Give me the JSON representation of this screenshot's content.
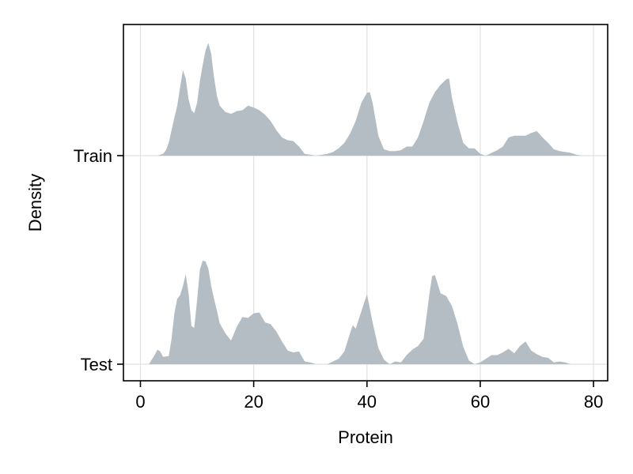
{
  "chart_data": {
    "type": "area",
    "subtype": "ridgeline-density",
    "title": "",
    "xlabel": "Protein",
    "ylabel": "Density",
    "xlim": [
      -3,
      82.5
    ],
    "xticks": [
      0,
      20,
      40,
      60,
      80
    ],
    "xtick_labels": [
      "0",
      "20",
      "40",
      "60",
      "80"
    ],
    "categories": [
      "Train",
      "Test"
    ],
    "grid": true,
    "fill_color": "#b4bdc4",
    "grid_color": "#e1e1e1",
    "series": [
      {
        "name": "Train",
        "x": [
          1.5,
          3.0,
          4.0,
          4.5,
          5.0,
          5.5,
          6.0,
          6.5,
          7.0,
          7.5,
          8.0,
          8.5,
          9.0,
          9.5,
          10.0,
          10.5,
          11.0,
          11.5,
          12.0,
          12.5,
          13.0,
          13.5,
          14.0,
          15.0,
          16.0,
          17.0,
          18.0,
          19.0,
          20.0,
          21.0,
          22.0,
          23.0,
          24.0,
          25.0,
          26.0,
          27.0,
          28.0,
          29.0,
          30.0,
          31.0,
          32.0,
          33.0,
          34.0,
          35.0,
          36.0,
          37.0,
          38.0,
          39.0,
          40.0,
          40.5,
          41.0,
          42.0,
          43.0,
          44.0,
          45.0,
          46.0,
          47.0,
          48.0,
          49.0,
          50.0,
          51.0,
          52.0,
          53.0,
          54.0,
          54.5,
          55.0,
          56.0,
          57.0,
          58.0,
          59.0,
          60.0,
          61.0,
          62.0,
          63.0,
          64.0,
          65.0,
          66.0,
          67.0,
          68.0,
          69.0,
          70.0,
          71.0,
          72.0,
          73.0,
          74.0,
          75.0,
          76.0,
          77.0,
          78.0
        ],
        "density": [
          0.0,
          0.0,
          0.02,
          0.06,
          0.14,
          0.28,
          0.42,
          0.55,
          0.75,
          0.94,
          0.85,
          0.62,
          0.5,
          0.47,
          0.58,
          0.82,
          1.0,
          1.16,
          1.24,
          1.12,
          0.86,
          0.66,
          0.55,
          0.48,
          0.46,
          0.49,
          0.5,
          0.55,
          0.53,
          0.5,
          0.45,
          0.38,
          0.28,
          0.2,
          0.17,
          0.16,
          0.1,
          0.02,
          0.01,
          0.0,
          0.01,
          0.02,
          0.04,
          0.08,
          0.14,
          0.24,
          0.38,
          0.58,
          0.69,
          0.7,
          0.58,
          0.22,
          0.07,
          0.05,
          0.05,
          0.06,
          0.1,
          0.1,
          0.2,
          0.38,
          0.58,
          0.7,
          0.78,
          0.84,
          0.85,
          0.64,
          0.36,
          0.14,
          0.08,
          0.08,
          0.02,
          0.0,
          0.03,
          0.06,
          0.1,
          0.2,
          0.22,
          0.22,
          0.22,
          0.25,
          0.27,
          0.2,
          0.14,
          0.07,
          0.05,
          0.04,
          0.03,
          0.01,
          0.0
        ]
      },
      {
        "name": "Test",
        "x": [
          1.5,
          2.5,
          3.0,
          3.5,
          4.0,
          5.0,
          5.5,
          6.0,
          6.5,
          7.0,
          7.5,
          8.0,
          8.5,
          9.0,
          9.5,
          10.0,
          10.5,
          11.0,
          11.5,
          12.0,
          12.5,
          13.0,
          13.5,
          14.0,
          15.0,
          16.0,
          17.0,
          18.0,
          19.0,
          20.0,
          21.0,
          22.0,
          23.0,
          24.0,
          25.0,
          26.0,
          27.0,
          28.0,
          29.0,
          30.0,
          31.0,
          32.0,
          33.0,
          34.0,
          35.0,
          36.0,
          37.0,
          37.5,
          38.0,
          39.0,
          40.0,
          41.0,
          42.0,
          43.0,
          44.0,
          45.0,
          46.0,
          47.0,
          48.0,
          49.0,
          50.0,
          51.0,
          51.5,
          52.0,
          53.0,
          54.0,
          55.0,
          56.0,
          57.0,
          58.0,
          59.0,
          60.0,
          61.0,
          62.0,
          63.0,
          64.0,
          65.0,
          66.0,
          67.0,
          68.0,
          69.0,
          70.0,
          71.0,
          72.0,
          73.0,
          74.0,
          75.0,
          76.0,
          77.0
        ],
        "density": [
          0.0,
          0.1,
          0.16,
          0.14,
          0.08,
          0.09,
          0.28,
          0.56,
          0.72,
          0.76,
          0.86,
          0.99,
          0.78,
          0.42,
          0.4,
          0.7,
          1.04,
          1.14,
          1.13,
          1.05,
          0.86,
          0.72,
          0.59,
          0.45,
          0.34,
          0.26,
          0.41,
          0.52,
          0.51,
          0.56,
          0.57,
          0.46,
          0.44,
          0.36,
          0.25,
          0.15,
          0.13,
          0.14,
          0.03,
          0.02,
          0.0,
          0.0,
          0.0,
          0.03,
          0.06,
          0.14,
          0.34,
          0.43,
          0.39,
          0.58,
          0.77,
          0.46,
          0.18,
          0.05,
          0.0,
          0.03,
          0.02,
          0.1,
          0.16,
          0.2,
          0.28,
          0.76,
          0.97,
          0.98,
          0.78,
          0.75,
          0.64,
          0.44,
          0.19,
          0.04,
          0.0,
          0.02,
          0.06,
          0.1,
          0.1,
          0.13,
          0.17,
          0.12,
          0.2,
          0.25,
          0.15,
          0.11,
          0.08,
          0.07,
          0.02,
          0.03,
          0.02,
          0.0,
          0.0
        ]
      }
    ]
  }
}
